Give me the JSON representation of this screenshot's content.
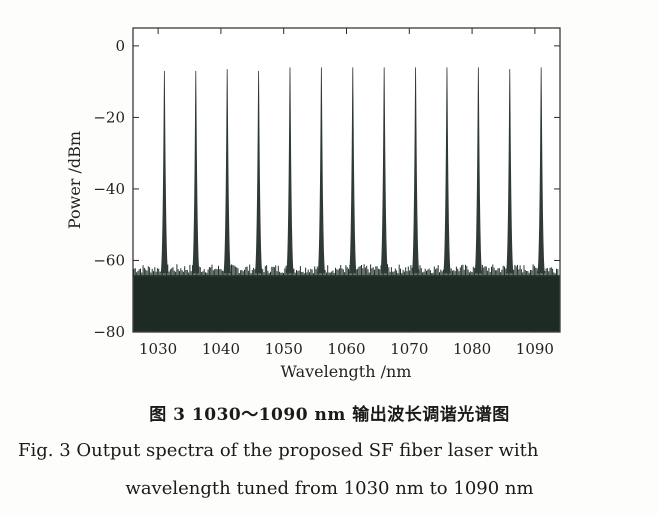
{
  "chart_data": {
    "type": "line",
    "xlabel": "Wavelength /nm",
    "ylabel": "Power /dBm",
    "xlim": [
      1026,
      1094
    ],
    "ylim": [
      -80,
      5
    ],
    "x_ticks": [
      1030,
      1040,
      1050,
      1060,
      1070,
      1080,
      1090
    ],
    "y_ticks": [
      0,
      -20,
      -40,
      -60,
      -80
    ],
    "grid": false,
    "noise_floor_dbm": -63,
    "series": [
      {
        "peaks_wavelength_nm": [
          1031,
          1036,
          1041,
          1046,
          1051,
          1056,
          1061,
          1066,
          1071,
          1076,
          1081,
          1086,
          1091
        ],
        "peaks_power_dbm": [
          -7,
          -7,
          -6.5,
          -7,
          -6,
          -6,
          -6,
          -6,
          -6,
          -6,
          -6,
          -6.5,
          -6
        ]
      }
    ]
  },
  "caption": {
    "cn": "图 3  1030～1090 nm 输出波长调谐光谱图",
    "en_line1": "Fig. 3  Output spectra of the proposed SF fiber laser with",
    "en_line2": "wavelength tuned from 1030 nm to 1090 nm"
  }
}
